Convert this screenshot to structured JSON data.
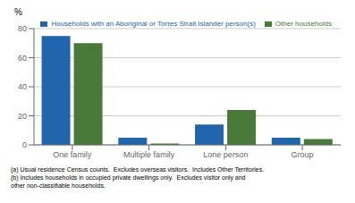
{
  "chart_data": {
    "type": "bar",
    "categories": [
      "One family",
      "Multiple family",
      "Lone person",
      "Group"
    ],
    "series": [
      {
        "name": "Households with an Aboriginal or Torres Strait Islander person(s)",
        "color": "#2166ac",
        "values": [
          75,
          5,
          14,
          5
        ]
      },
      {
        "name": "Other households",
        "color": "#4a7a3a",
        "values": [
          70,
          1,
          24,
          4
        ]
      }
    ],
    "y_label": "%",
    "ylim": [
      0,
      80
    ],
    "yticks": [
      0,
      20,
      40,
      60,
      80
    ],
    "grid": true,
    "legend": "upper right",
    "annotations": [
      "(a) Usual residence Census counts.  Excludes overseas visitors.  Includes Other Territories.\n(b) Includes households in occupied private dwellings only.  Excludes visitor only and\nother non-classifiable households."
    ]
  }
}
